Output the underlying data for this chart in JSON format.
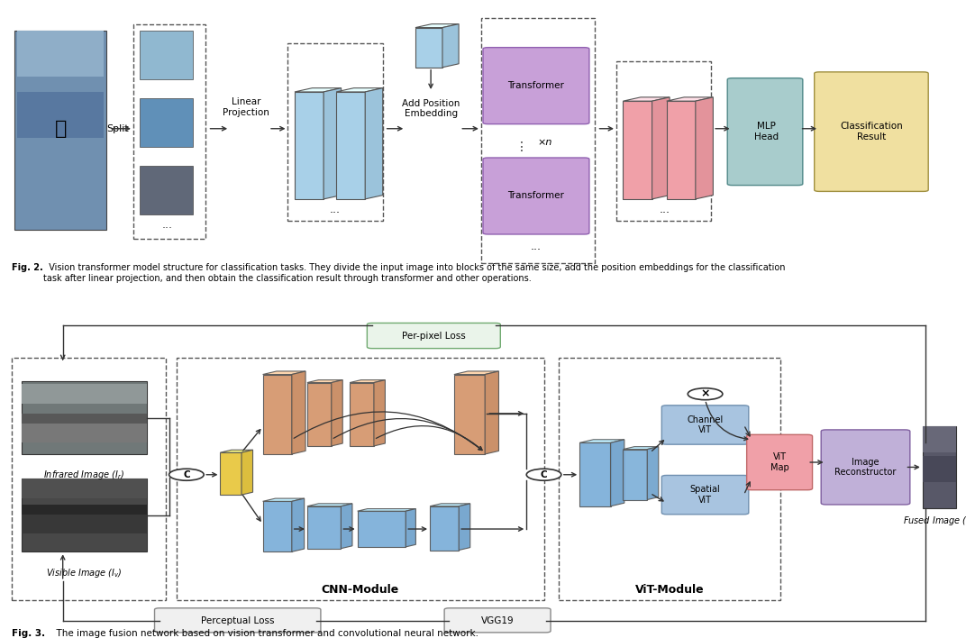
{
  "fig2": {
    "caption_bold": "Fig. 2.",
    "caption_normal": "  Vision transformer model structure for classification tasks. They divide the input image into blocks of the same size, add the position embeddings for the classification\ntask after linear projection, and then obtain the classification result through transformer and other operations.",
    "church_color": "#7090b0",
    "patch_colors": [
      "#7ba8c8",
      "#5080a8",
      "#606878"
    ],
    "block_color_blue": "#A8D0E8",
    "block_color_pink": "#F0B0B0",
    "transformer_color": "#C8A8D8",
    "mlp_color": "#A8CCCC",
    "class_color": "#F0E0A0",
    "pos_embed_color": "#A8D0E8"
  },
  "fig3": {
    "caption_bold": "Fig. 3.",
    "caption_normal": "  The image fusion network based on vision transformer and convolutional neural network.",
    "colors": {
      "orange_block": "#D4956A",
      "blue_block": "#7BAED8",
      "yellow_block": "#E8C840",
      "light_blue_vit": "#A8C4E0",
      "pink_vit": "#F0A0A8",
      "image_recon_color": "#C0B0D8",
      "per_pixel_fc": "#E8F0E8",
      "per_pixel_ec": "#80AA80",
      "perceptual_fc": "#F0F0F0",
      "perceptual_ec": "#888888",
      "vgg_fc": "#F0F0F0",
      "vgg_ec": "#888888"
    },
    "labels": {
      "infrared": "Infrared Image ($\\mathit{I_r}$)",
      "visible": "Visible Image ($\\mathit{I_v}$)",
      "fused": "Fused Image ($\\mathit{I_f}$)",
      "cnn_module": "CNN-Module",
      "vit_module": "ViT-Module",
      "channel_vit": "Channel\nViT",
      "spatial_vit": "Spatial\nViT",
      "vit_map": "ViT\nMap",
      "image_recon": "Image\nReconstructor",
      "perceptual": "Perceptual Loss",
      "vgg19": "VGG19",
      "per_pixel": "Per-pixel Loss"
    }
  }
}
